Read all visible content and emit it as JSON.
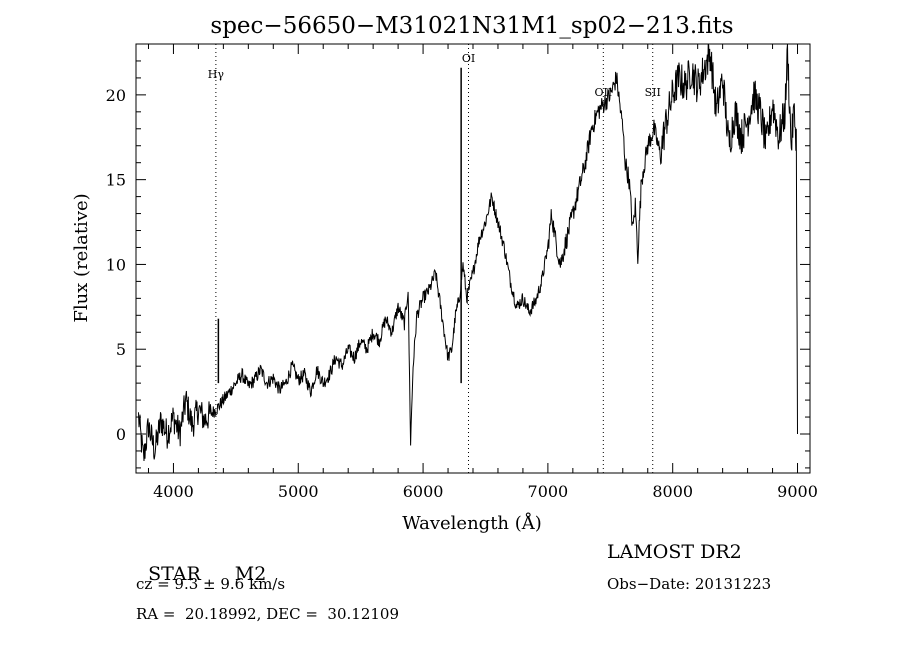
{
  "chart_data": {
    "type": "line",
    "title": "spec−56650−M31021N31M1_sp02−213.fits",
    "xlabel": "Wavelength (Å)",
    "ylabel": "Flux (relative)",
    "xlim": [
      3700,
      9100
    ],
    "ylim": [
      -2.3,
      23
    ],
    "xticks": [
      4000,
      5000,
      6000,
      7000,
      8000,
      9000
    ],
    "yticks": [
      0,
      5,
      10,
      15,
      20
    ],
    "grid": false,
    "line_color": "#000000",
    "lines": [
      {
        "name": "Hγ",
        "x": 4340
      },
      {
        "name": "OI",
        "x": 6364
      },
      {
        "name": "OII",
        "x": 7444
      },
      {
        "name": "SII",
        "x": 7840
      }
    ],
    "spikes": [
      {
        "x": 4360,
        "y": 6.8
      },
      {
        "x": 6305,
        "y": 21.6
      }
    ],
    "series": [
      {
        "x": [
          3720,
          3760,
          3800,
          3850,
          3900,
          3950,
          4000,
          4050,
          4100,
          4150,
          4200,
          4250,
          4300,
          4350,
          4400,
          4450,
          4500,
          4550,
          4600,
          4650,
          4700,
          4750,
          4800,
          4850,
          4900,
          4950,
          5000,
          5050,
          5100,
          5150,
          5200,
          5250,
          5300,
          5350,
          5400,
          5450,
          5500,
          5550,
          5600,
          5650,
          5700,
          5750,
          5800,
          5850,
          5880,
          5900,
          5920,
          5950,
          6000,
          6050,
          6100,
          6150,
          6180,
          6200,
          6230,
          6260,
          6290,
          6320,
          6350,
          6400,
          6450,
          6500,
          6550,
          6600,
          6650,
          6700,
          6750,
          6800,
          6850,
          6900,
          6950,
          7000,
          7030,
          7060,
          7100,
          7150,
          7200,
          7250,
          7300,
          7350,
          7400,
          7450,
          7500,
          7550,
          7600,
          7620,
          7650,
          7680,
          7700,
          7720,
          7750,
          7800,
          7850,
          7900,
          7950,
          8000,
          8050,
          8100,
          8150,
          8200,
          8250,
          8300,
          8350,
          8400,
          8450,
          8500,
          8550,
          8600,
          8650,
          8700,
          8750,
          8800,
          8850,
          8900,
          8920,
          8950,
          8970,
          8990,
          9000
        ],
        "values": [
          1.0,
          -1.5,
          0.5,
          -1.0,
          0.8,
          0.0,
          1.0,
          0.0,
          2.0,
          0.5,
          1.5,
          0.8,
          1.2,
          1.5,
          2.0,
          2.5,
          3.0,
          3.5,
          2.8,
          3.2,
          3.8,
          3.0,
          3.3,
          2.6,
          3.0,
          4.0,
          3.2,
          3.5,
          2.5,
          3.8,
          3.0,
          3.5,
          4.5,
          4.0,
          5.0,
          4.5,
          5.5,
          5.0,
          6.0,
          5.5,
          6.8,
          6.0,
          7.5,
          6.5,
          8.5,
          -0.5,
          4.0,
          7.0,
          8.0,
          8.5,
          9.5,
          7.0,
          5.5,
          4.5,
          5.0,
          7.0,
          8.0,
          10.0,
          8.0,
          9.5,
          11.5,
          12.5,
          14.0,
          12.5,
          11.0,
          9.0,
          7.5,
          8.0,
          7.2,
          7.8,
          9.0,
          11.0,
          13.0,
          11.5,
          10.0,
          11.5,
          13.0,
          14.5,
          16.0,
          18.0,
          19.0,
          19.5,
          20.0,
          21.0,
          18.0,
          16.0,
          15.0,
          12.0,
          13.5,
          10.5,
          15.0,
          17.0,
          18.0,
          16.5,
          18.5,
          20.0,
          21.0,
          20.5,
          21.5,
          20.5,
          21.5,
          22.5,
          19.0,
          21.0,
          17.0,
          19.0,
          17.5,
          18.5,
          20.0,
          19.0,
          17.0,
          19.5,
          17.5,
          19.0,
          22.5,
          17.0,
          19.0,
          17.5,
          0.0
        ]
      }
    ]
  },
  "info": {
    "left_line1_type": "STAR",
    "left_line1_subclass": "M2",
    "left_line2": "cz = 9.3 ± 9.6 km/s",
    "left_line3": "RA =  20.18992, DEC =  30.12109",
    "right_line1": "LAMOST DR2",
    "right_line2": "Obs−Date: 20131223"
  }
}
